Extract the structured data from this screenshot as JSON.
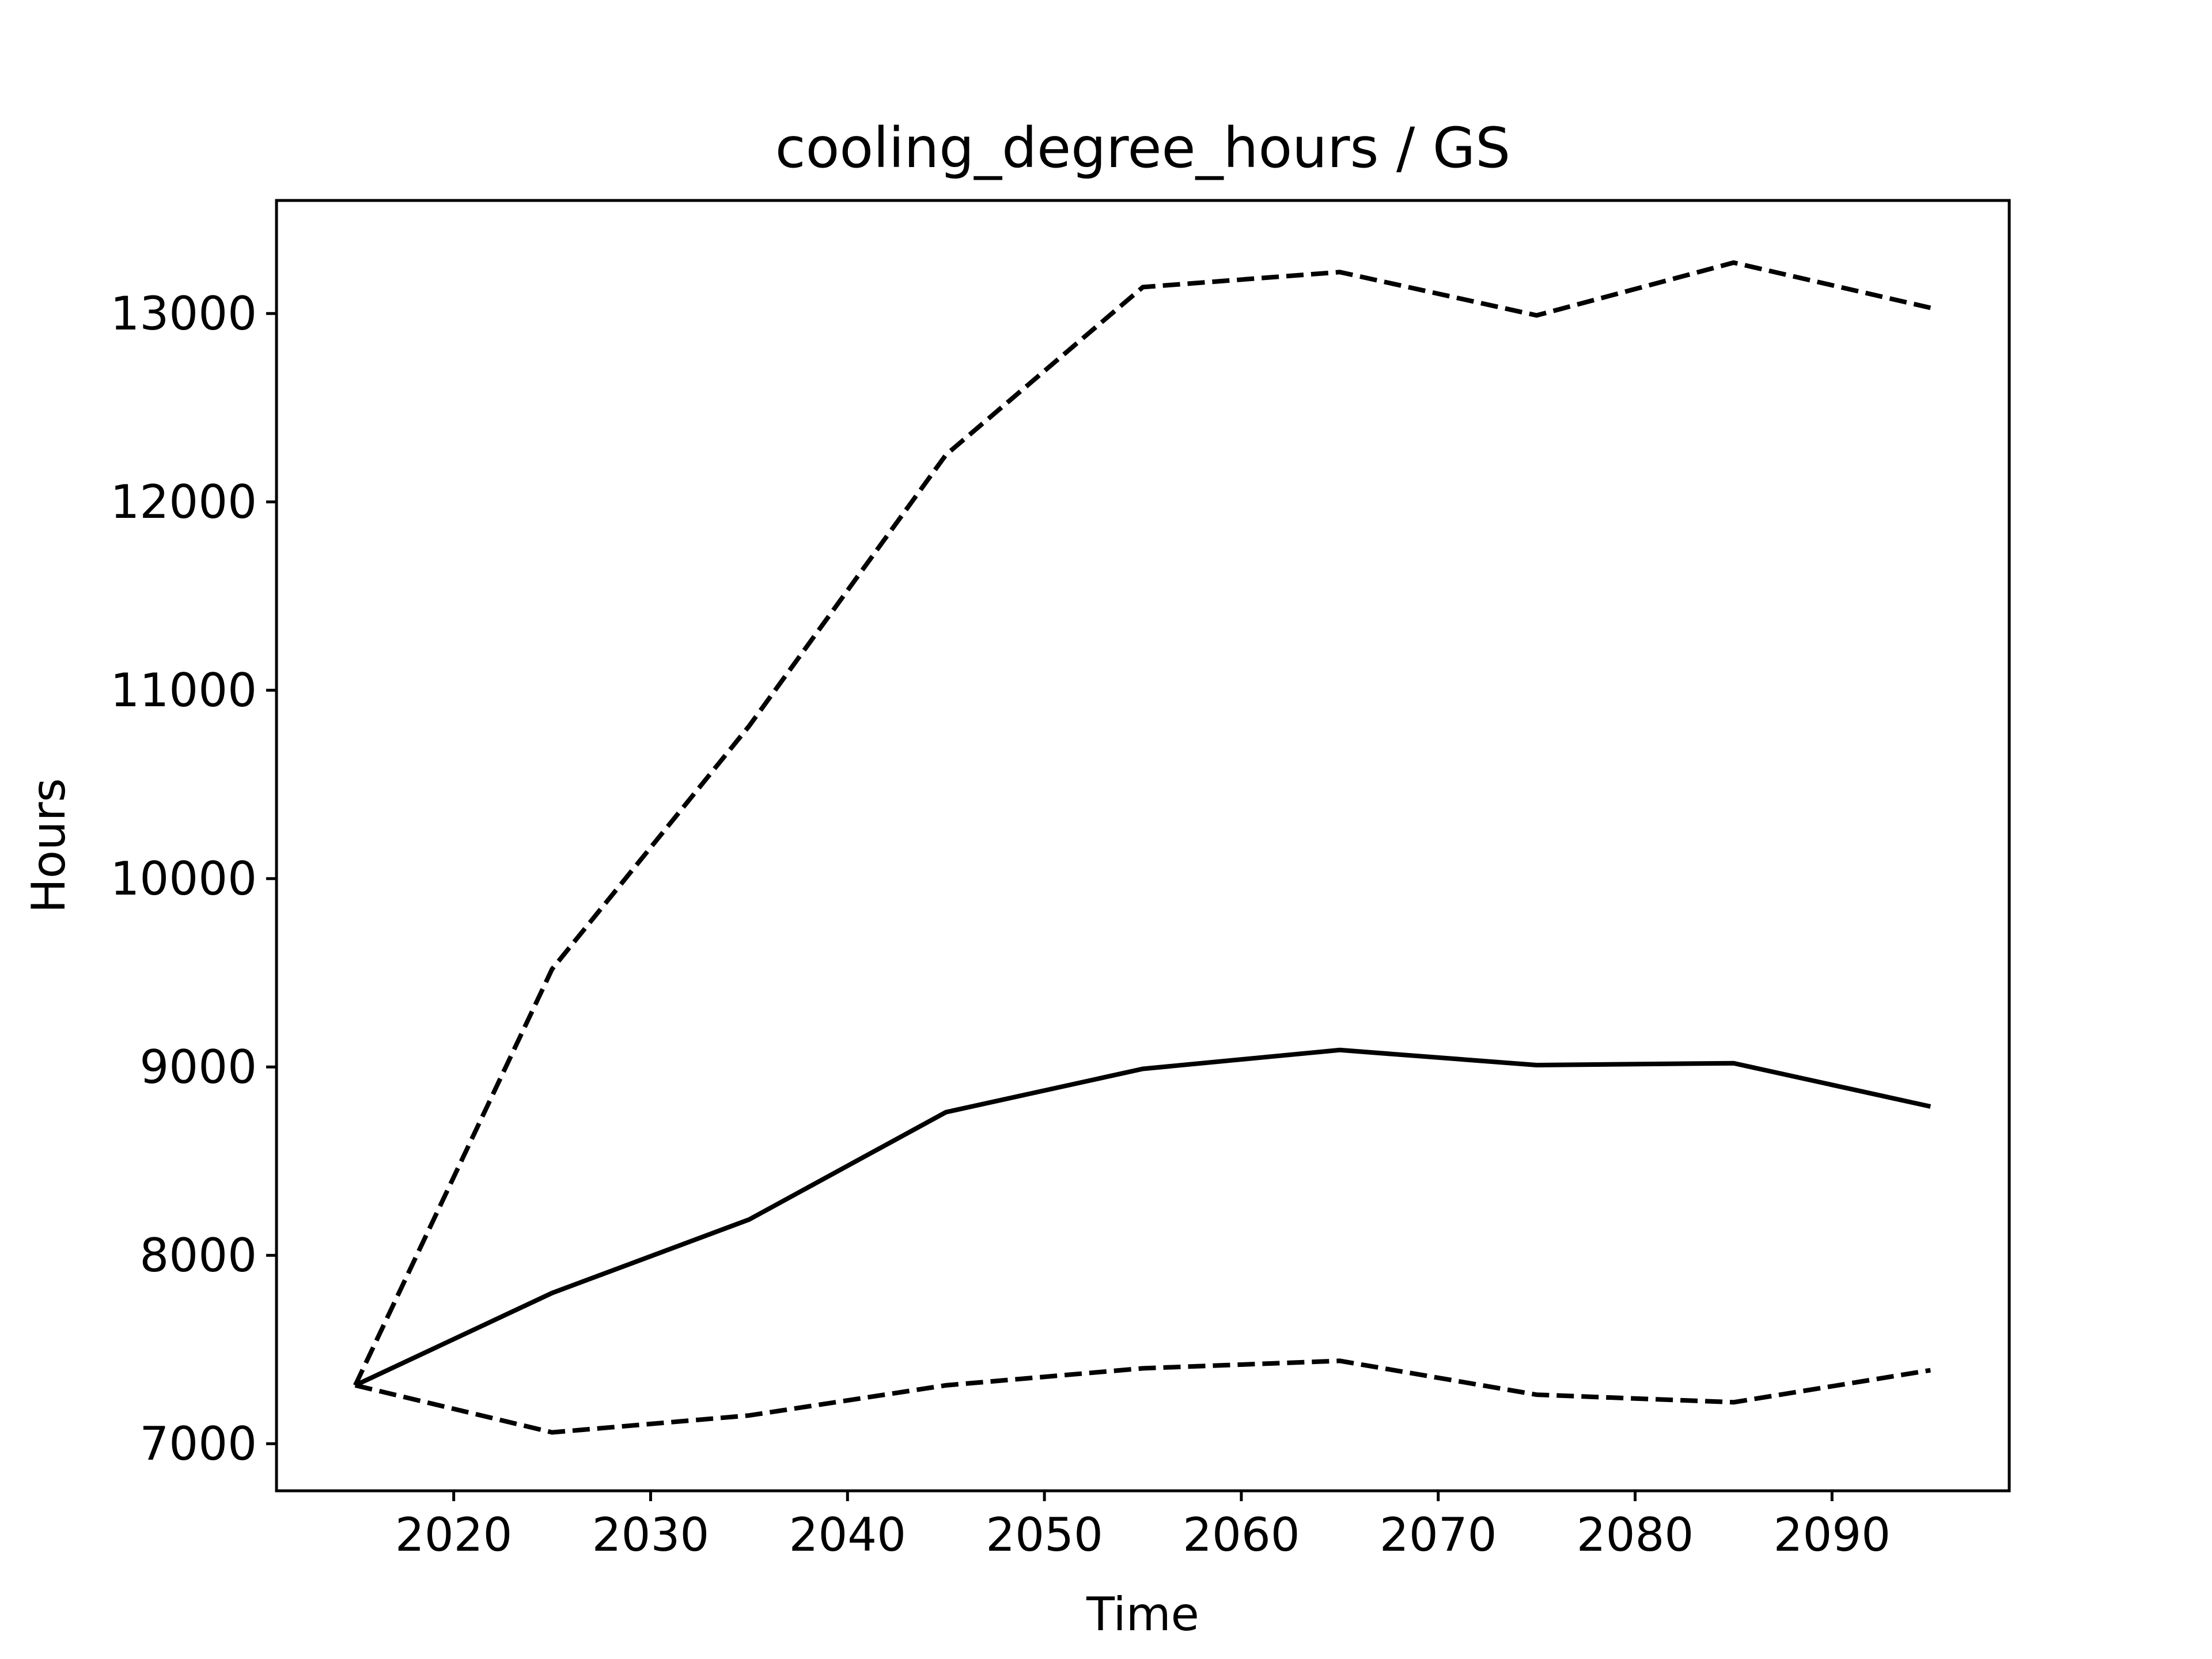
{
  "chart_data": {
    "type": "line",
    "title": "cooling_degree_hours / GS",
    "xlabel": "Time",
    "ylabel": "Hours",
    "x": [
      2015,
      2025,
      2035,
      2045,
      2055,
      2065,
      2075,
      2085,
      2095
    ],
    "xlim": [
      2011,
      2099
    ],
    "ylim": [
      6750,
      13600
    ],
    "xticks": [
      2020,
      2030,
      2040,
      2050,
      2060,
      2070,
      2080,
      2090
    ],
    "yticks": [
      7000,
      8000,
      9000,
      10000,
      11000,
      12000,
      13000
    ],
    "grid": false,
    "legend": "none",
    "series": [
      {
        "style": "dashed",
        "color": "#000000",
        "values": [
          7310,
          9520,
          10810,
          12250,
          13140,
          13220,
          12990,
          13270,
          13030
        ]
      },
      {
        "style": "solid",
        "color": "#000000",
        "values": [
          7310,
          7800,
          8190,
          8760,
          8990,
          9090,
          9010,
          9020,
          8790
        ]
      },
      {
        "style": "dashed",
        "color": "#000000",
        "values": [
          7310,
          7060,
          7150,
          7310,
          7400,
          7440,
          7260,
          7220,
          7390
        ]
      }
    ]
  }
}
